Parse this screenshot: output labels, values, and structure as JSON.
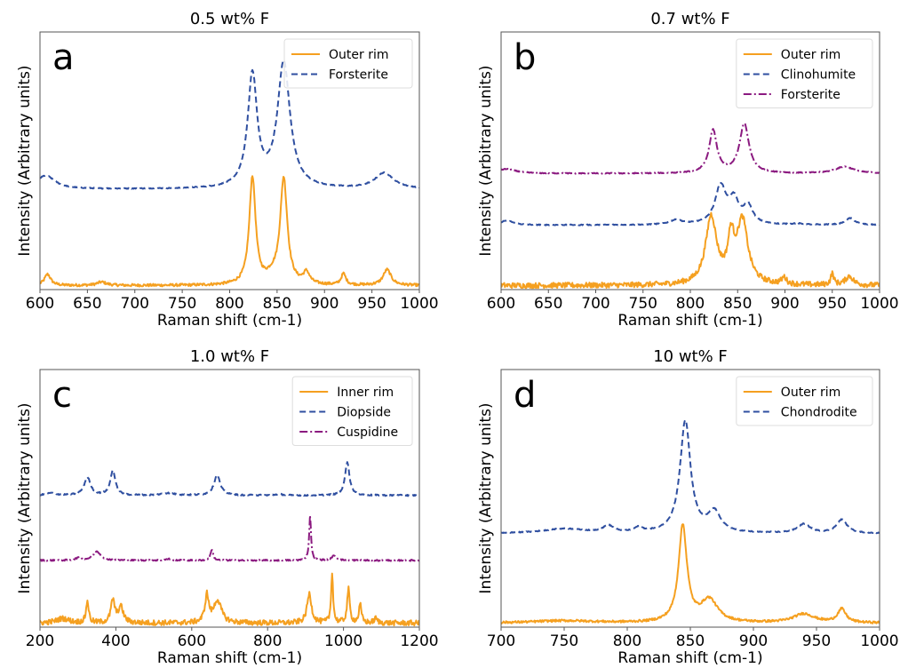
{
  "chart_data": [
    {
      "type": "line",
      "panel_label": "a",
      "title": "0.5 wt% F",
      "xlabel": "Raman shift (cm-1)",
      "ylabel": "Intensity (Arbitrary units)",
      "xlim": [
        600,
        1000
      ],
      "xticks": [
        600,
        650,
        700,
        750,
        800,
        850,
        900,
        950,
        1000
      ],
      "ylim": [
        0,
        1.15
      ],
      "yticks_visible": false,
      "legend": "top-right",
      "series": [
        {
          "name": "Outer rim",
          "style": "solid",
          "color": "#f5a020",
          "offset": 0.0,
          "noise": 0.006,
          "peaks": [
            [
              608,
              0.05,
              4
            ],
            [
              665,
              0.015,
              6
            ],
            [
              824,
              0.48,
              4
            ],
            [
              845,
              0.03,
              8
            ],
            [
              857,
              0.47,
              4.5
            ],
            [
              881,
              0.05,
              4
            ],
            [
              920,
              0.05,
              3
            ],
            [
              966,
              0.07,
              5
            ]
          ]
        },
        {
          "name": "Forsterite",
          "style": "dashed",
          "color": "#2f4fa0",
          "offset": 0.43,
          "noise": 0.002,
          "peaks": [
            [
              606,
              0.06,
              12
            ],
            [
              824,
              0.5,
              6
            ],
            [
              857,
              0.56,
              8
            ],
            [
              963,
              0.07,
              12
            ]
          ]
        }
      ]
    },
    {
      "type": "line",
      "panel_label": "b",
      "title": "0.7 wt% F",
      "xlabel": "Raman shift (cm-1)",
      "ylabel": "Intensity (Arbitrary units)",
      "xlim": [
        600,
        1000
      ],
      "xticks": [
        600,
        650,
        700,
        750,
        800,
        850,
        900,
        950,
        1000
      ],
      "ylim": [
        0,
        1.15
      ],
      "yticks_visible": false,
      "legend": "top-right",
      "series": [
        {
          "name": "Outer rim",
          "style": "solid",
          "color": "#f5a020",
          "offset": 0.0,
          "noise": 0.012,
          "peaks": [
            [
              822,
              0.3,
              7
            ],
            [
              843,
              0.18,
              4
            ],
            [
              855,
              0.28,
              7
            ],
            [
              899,
              0.03,
              3
            ],
            [
              950,
              0.05,
              2
            ],
            [
              968,
              0.04,
              5
            ]
          ]
        },
        {
          "name": "Clinohumite",
          "style": "dashed",
          "color": "#2f4fa0",
          "offset": 0.27,
          "noise": 0.002,
          "peaks": [
            [
              606,
              0.02,
              8
            ],
            [
              785,
              0.02,
              8
            ],
            [
              832,
              0.17,
              7
            ],
            [
              846,
              0.1,
              6
            ],
            [
              861,
              0.08,
              6
            ],
            [
              913,
              0.005,
              6
            ],
            [
              969,
              0.03,
              6
            ]
          ]
        },
        {
          "name": "Forsterite",
          "style": "dashdot",
          "color": "#8b1a80",
          "offset": 0.5,
          "noise": 0.002,
          "peaks": [
            [
              606,
              0.02,
              12
            ],
            [
              824,
              0.19,
              5
            ],
            [
              857,
              0.22,
              6
            ],
            [
              963,
              0.03,
              12
            ]
          ]
        }
      ]
    },
    {
      "type": "line",
      "panel_label": "c",
      "title": "1.0 wt% F",
      "xlabel": "Raman shift (cm-1)",
      "ylabel": "Intensity (Arbitrary units)",
      "xlim": [
        200,
        1200
      ],
      "xticks": [
        200,
        400,
        600,
        800,
        1000,
        1200
      ],
      "ylim": [
        0,
        1.15
      ],
      "yticks_visible": false,
      "legend": "top-right",
      "series": [
        {
          "name": "Inner rim",
          "style": "solid",
          "color": "#f5a020",
          "offset": 0.0,
          "noise": 0.012,
          "peaks": [
            [
              260,
              0.02,
              20
            ],
            [
              325,
              0.1,
              4
            ],
            [
              392,
              0.1,
              6
            ],
            [
              413,
              0.07,
              8
            ],
            [
              640,
              0.12,
              6
            ],
            [
              668,
              0.1,
              12
            ],
            [
              910,
              0.13,
              7
            ],
            [
              970,
              0.23,
              3
            ],
            [
              1013,
              0.15,
              4
            ],
            [
              1044,
              0.08,
              4
            ],
            [
              1085,
              0.02,
              5
            ]
          ]
        },
        {
          "name": "Diopside",
          "style": "dashed",
          "color": "#2f4fa0",
          "offset": 0.57,
          "noise": 0.003,
          "peaks": [
            [
              230,
              0.01,
              15
            ],
            [
              325,
              0.08,
              10
            ],
            [
              392,
              0.11,
              8
            ],
            [
              538,
              0.01,
              20
            ],
            [
              667,
              0.09,
              10
            ],
            [
              830,
              0.006,
              10
            ],
            [
              1010,
              0.15,
              7
            ]
          ]
        },
        {
          "name": "Cuspidine",
          "style": "dashdot",
          "color": "#8b1a80",
          "offset": 0.28,
          "noise": 0.003,
          "peaks": [
            [
              300,
              0.01,
              8
            ],
            [
              350,
              0.04,
              12
            ],
            [
              540,
              0.006,
              10
            ],
            [
              653,
              0.05,
              4
            ],
            [
              912,
              0.2,
              3
            ],
            [
              975,
              0.02,
              8
            ]
          ]
        }
      ]
    },
    {
      "type": "line",
      "panel_label": "d",
      "title": "10 wt% F",
      "xlabel": "Raman shift (cm-1)",
      "ylabel": "Intensity (Arbitrary units)",
      "xlim": [
        700,
        1000
      ],
      "xticks": [
        700,
        750,
        800,
        850,
        900,
        950,
        1000
      ],
      "ylim": [
        0,
        1.15
      ],
      "yticks_visible": false,
      "legend": "top-right",
      "series": [
        {
          "name": "Outer rim",
          "style": "solid",
          "color": "#f5a020",
          "offset": 0.0,
          "noise": 0.005,
          "peaks": [
            [
              750,
              0.01,
              30
            ],
            [
              844,
              0.43,
              4
            ],
            [
              865,
              0.1,
              8
            ],
            [
              940,
              0.04,
              10
            ],
            [
              970,
              0.06,
              4
            ]
          ]
        },
        {
          "name": "Chondrodite",
          "style": "dashed",
          "color": "#2f4fa0",
          "offset": 0.4,
          "noise": 0.002,
          "peaks": [
            [
              750,
              0.02,
              20
            ],
            [
              785,
              0.03,
              5
            ],
            [
              809,
              0.02,
              4
            ],
            [
              846,
              0.5,
              5
            ],
            [
              869,
              0.09,
              6
            ],
            [
              940,
              0.04,
              6
            ],
            [
              970,
              0.06,
              5
            ]
          ]
        }
      ]
    }
  ]
}
